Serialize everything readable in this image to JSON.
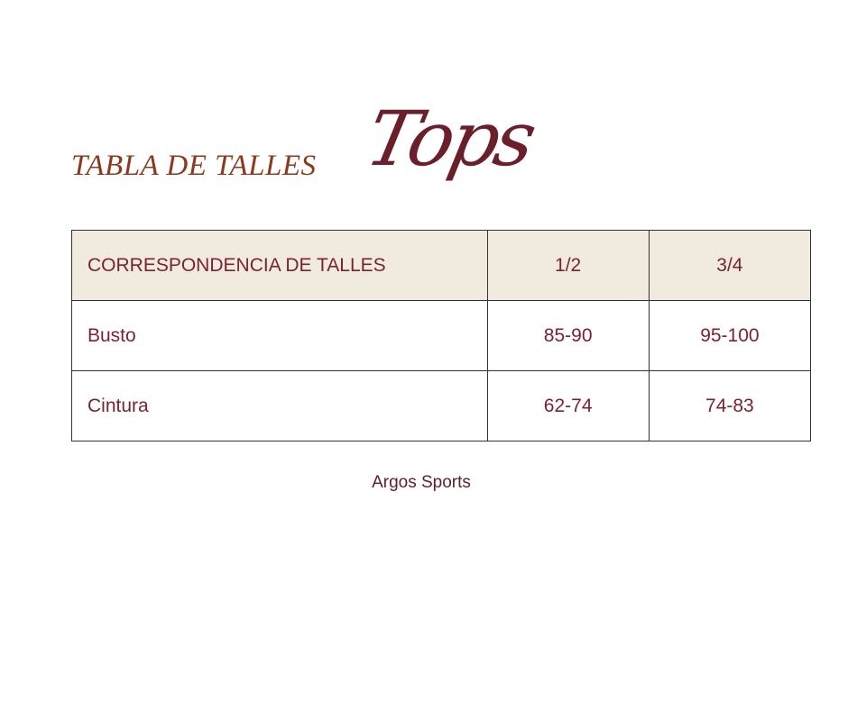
{
  "header": {
    "title": "TABLA DE TALLES",
    "script_title": "Tops"
  },
  "table": {
    "columns": [
      "CORRESPONDENCIA DE TALLES",
      "1/2",
      "3/4"
    ],
    "rows": [
      {
        "label": "Busto",
        "values": [
          "85-90",
          "95-100"
        ]
      },
      {
        "label": "Cintura",
        "values": [
          "62-74",
          "74-83"
        ]
      }
    ]
  },
  "footer": {
    "brand": "Argos Sports"
  },
  "colors": {
    "header_bg": "#f1ebdf",
    "text": "#7a2330",
    "title": "#8a3a1c"
  }
}
